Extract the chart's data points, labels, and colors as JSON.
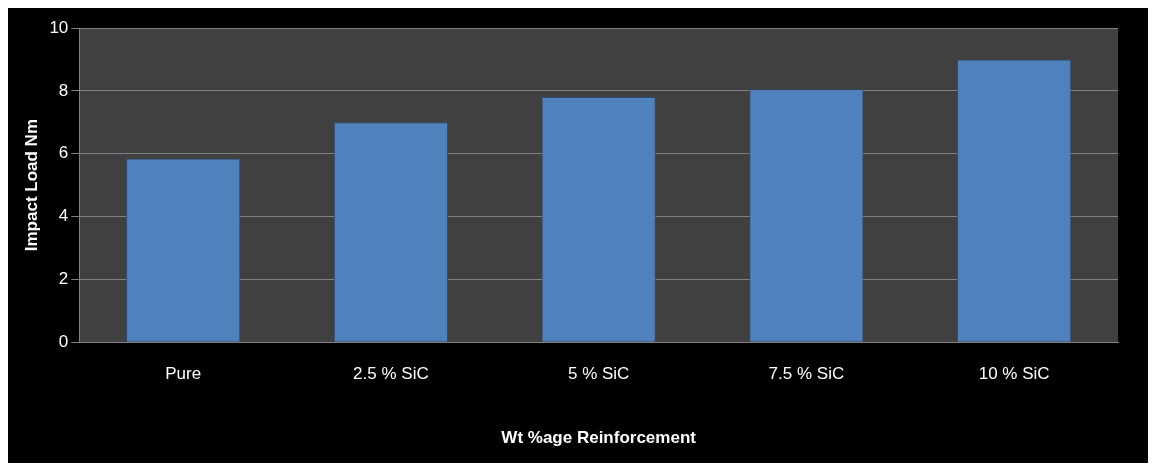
{
  "chart_data": {
    "type": "bar",
    "xlabel": "Wt %age Reinforcement",
    "ylabel": "Impact Load Nm",
    "categories": [
      "Pure",
      "2.5 % SiC",
      "5 % SiC",
      "7.5 % SiC",
      "10 % SiC"
    ],
    "values": [
      5.85,
      7.0,
      7.8,
      8.05,
      9.0
    ],
    "color": "#4f81bd",
    "ylim": [
      0,
      10
    ],
    "yticks": [
      0,
      2,
      4,
      6,
      8,
      10
    ],
    "grid": "y"
  }
}
